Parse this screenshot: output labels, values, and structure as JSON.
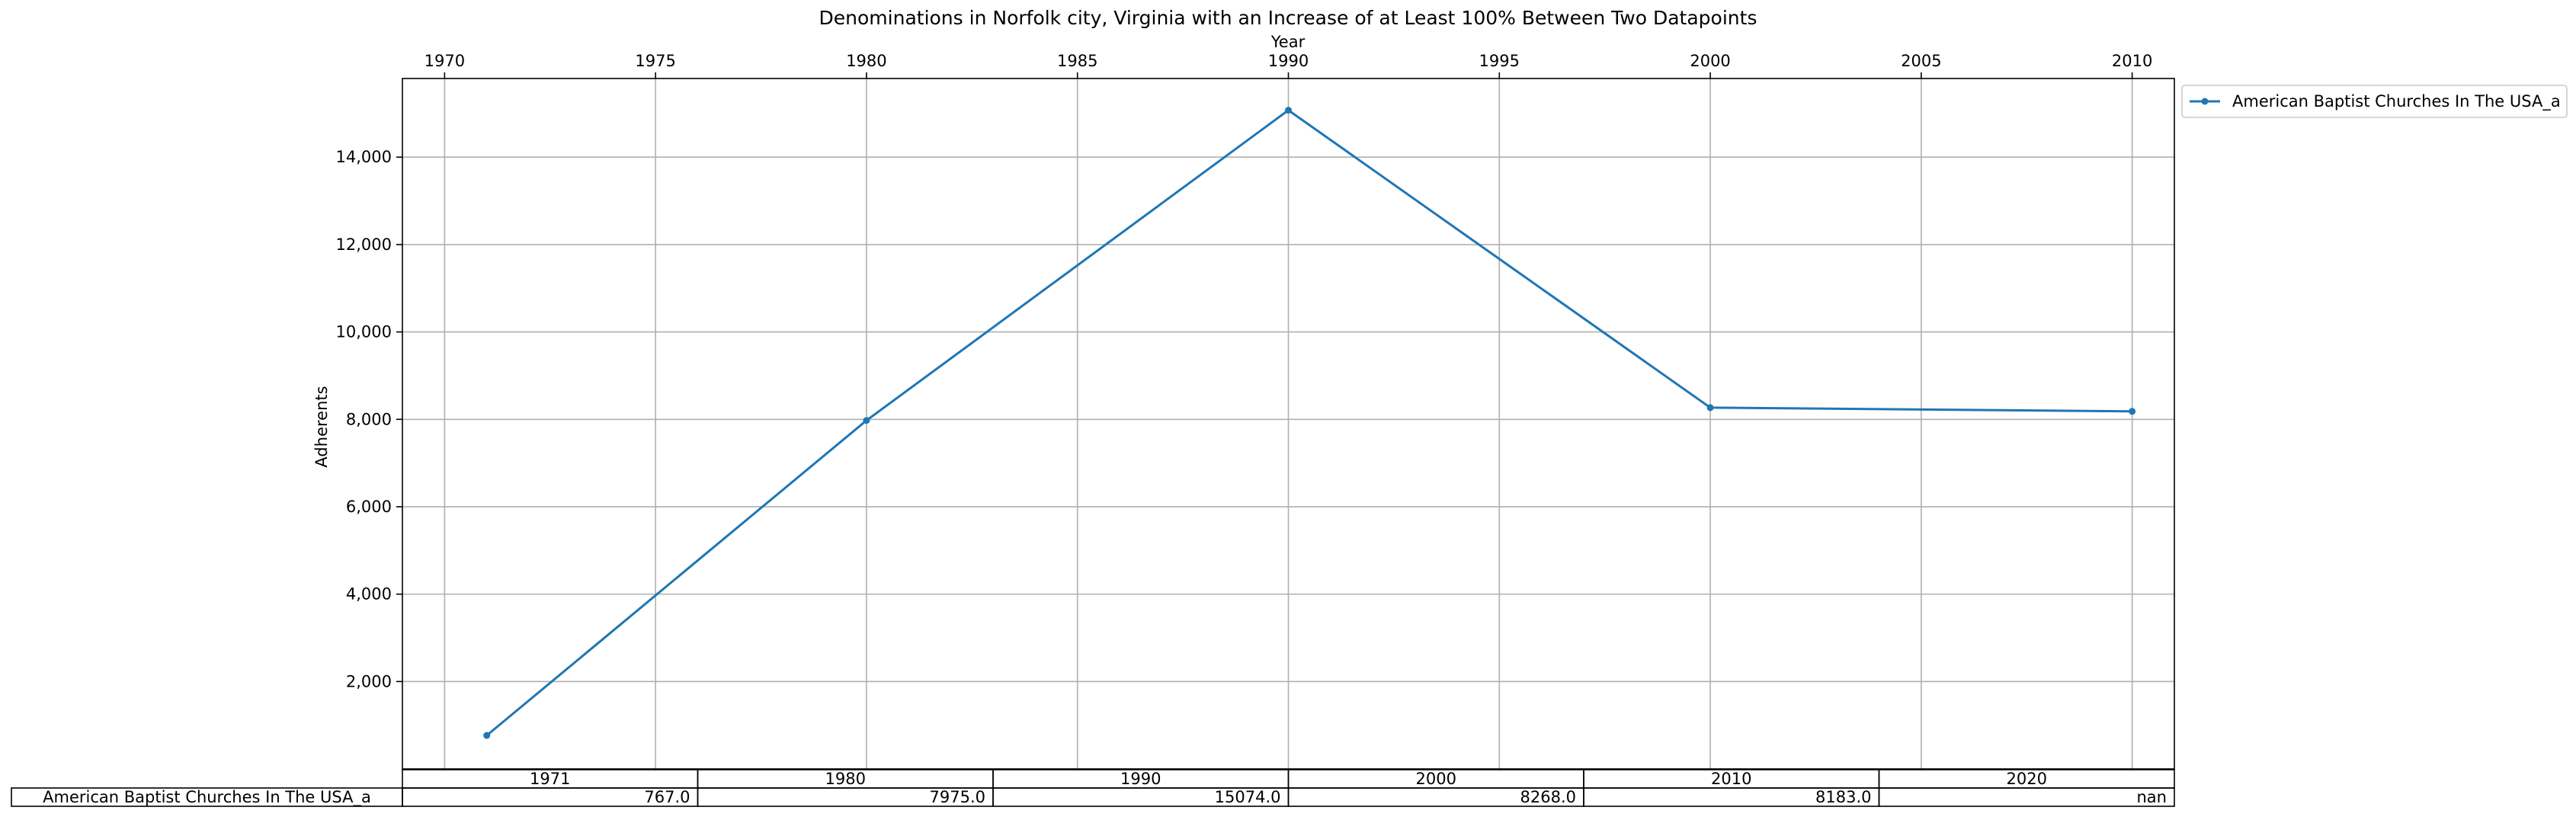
{
  "chart_data": {
    "type": "line",
    "title": "Denominations in Norfolk city, Virginia with an Increase of at Least 100% Between Two Datapoints",
    "xlabel": "Year",
    "ylabel": "Adherents",
    "x_ticks": [
      "1970",
      "1975",
      "1980",
      "1985",
      "1990",
      "1995",
      "2000",
      "2005",
      "2010"
    ],
    "y_ticks": [
      "2,000",
      "4,000",
      "6,000",
      "8,000",
      "10,000",
      "12,000",
      "14,000"
    ],
    "xlim": [
      1969,
      2011
    ],
    "ylim": [
      0,
      15800
    ],
    "x_axis_position": "top",
    "grid": true,
    "legend_position": "outside-top-right",
    "series": [
      {
        "name": "American Baptist Churches In The USA_a",
        "color": "#1f77b4",
        "x": [
          1971,
          1980,
          1990,
          2000,
          2010
        ],
        "y": [
          767,
          7975,
          15074,
          8268,
          8183
        ]
      }
    ],
    "table": {
      "columns": [
        "1971",
        "1980",
        "1990",
        "2000",
        "2010",
        "2020"
      ],
      "rows": [
        {
          "label": "American Baptist Churches In The USA_a",
          "values": [
            "767.0",
            "7975.0",
            "15074.0",
            "8268.0",
            "8183.0",
            "nan"
          ]
        }
      ]
    }
  }
}
